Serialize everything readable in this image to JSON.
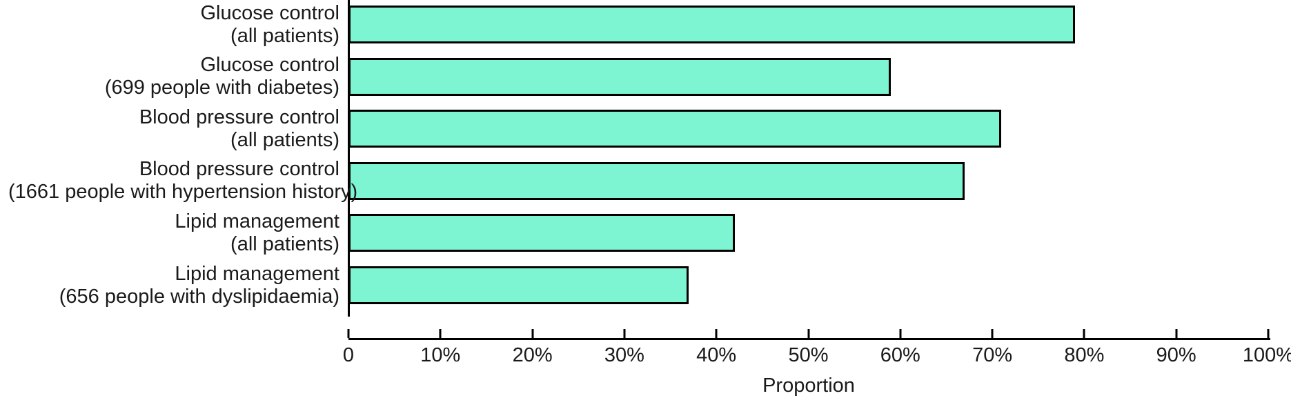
{
  "chart_data": {
    "type": "bar",
    "orientation": "horizontal",
    "title": "",
    "xlabel": "Proportion",
    "ylabel": "",
    "xlim": [
      0,
      100
    ],
    "grid": false,
    "legend": null,
    "categories": [
      [
        "Glucose control",
        "(all patients)"
      ],
      [
        "Glucose control",
        "(699 people with diabetes)"
      ],
      [
        "Blood pressure control",
        "(all patients)"
      ],
      [
        "Blood pressure control",
        "(1661 people with hypertension history)"
      ],
      [
        "Lipid management",
        "(all patients)"
      ],
      [
        "Lipid management",
        "(656 people with dyslipidaemia)"
      ]
    ],
    "values": [
      79,
      59,
      71,
      67,
      42,
      37
    ],
    "x_ticks": [
      {
        "value": 0,
        "label": "0"
      },
      {
        "value": 10,
        "label": "10%"
      },
      {
        "value": 20,
        "label": "20%"
      },
      {
        "value": 30,
        "label": "30%"
      },
      {
        "value": 40,
        "label": "40%"
      },
      {
        "value": 50,
        "label": "50%"
      },
      {
        "value": 60,
        "label": "60%"
      },
      {
        "value": 70,
        "label": "70%"
      },
      {
        "value": 80,
        "label": "80%"
      },
      {
        "value": 90,
        "label": "90%"
      },
      {
        "value": 100,
        "label": "100%"
      }
    ],
    "colors": {
      "bar_fill": "#7ef5d2",
      "bar_border": "#000000",
      "axis": "#000000",
      "text": "#1a1a1a"
    }
  }
}
